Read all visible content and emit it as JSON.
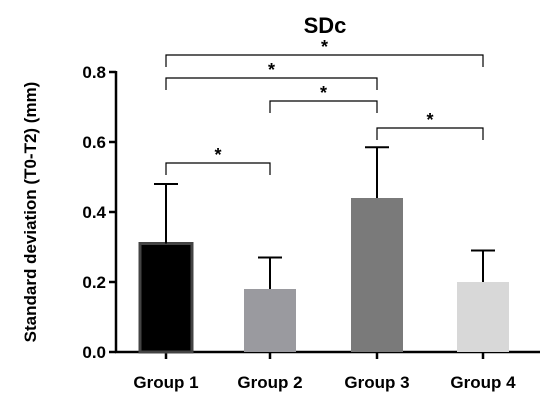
{
  "chart_data": {
    "type": "bar",
    "title": "SDc",
    "xlabel": "",
    "ylabel": "Standard deviation (T0-T2) (mm)",
    "categories": [
      "Group 1",
      "Group 2",
      "Group 3",
      "Group 4"
    ],
    "values": [
      0.31,
      0.18,
      0.44,
      0.2
    ],
    "errors": [
      0.17,
      0.09,
      0.145,
      0.09
    ],
    "colors": [
      "#000000",
      "#9a9a9f",
      "#7a7a7a",
      "#d8d8d8"
    ],
    "ylim": [
      0,
      0.8
    ],
    "yticks": [
      "0.0",
      "0.2",
      "0.4",
      "0.6",
      "0.8"
    ],
    "ytick_values": [
      0.0,
      0.2,
      0.4,
      0.6,
      0.8
    ],
    "grid": false,
    "significance": [
      {
        "from": 0,
        "to": 1,
        "label": "*"
      },
      {
        "from": 1,
        "to": 2,
        "label": "*"
      },
      {
        "from": 2,
        "to": 3,
        "label": "*"
      },
      {
        "from": 0,
        "to": 2,
        "label": "*"
      },
      {
        "from": 0,
        "to": 3,
        "label": "*"
      }
    ]
  }
}
